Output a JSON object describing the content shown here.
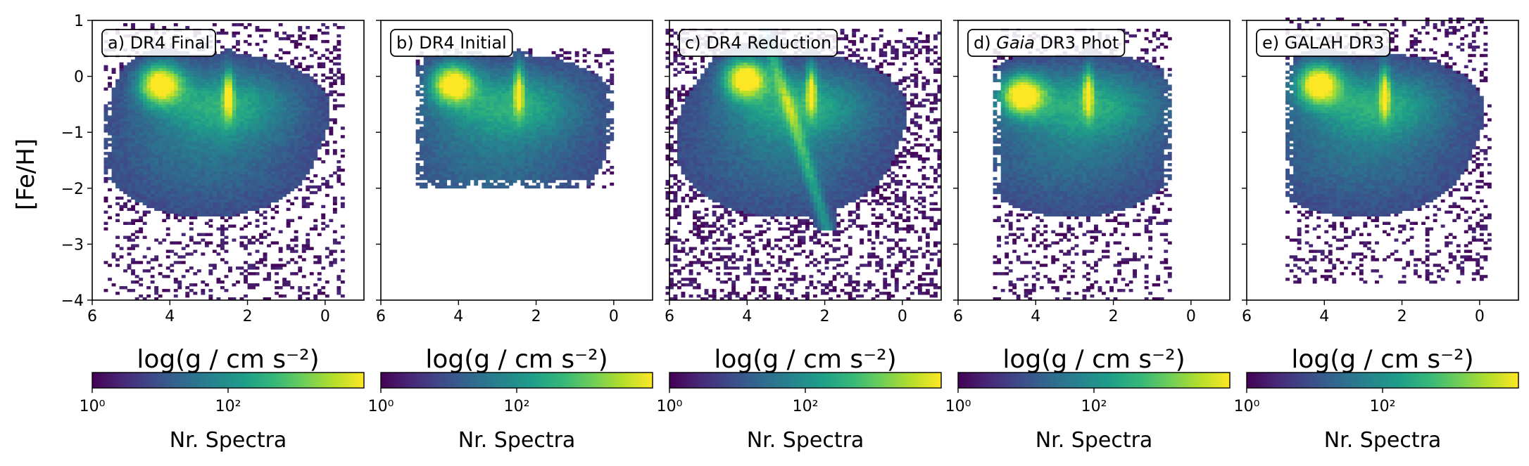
{
  "figure": {
    "ylabel": "[Fe/H]",
    "xlabel": "log(g / cm s⁻²)",
    "colorbar_label": "Nr. Spectra"
  },
  "colors": {
    "viridis": [
      "#440154",
      "#482878",
      "#3e4a89",
      "#31688e",
      "#26828e",
      "#1f9e89",
      "#35b779",
      "#6ece58",
      "#b5de2b",
      "#fde725"
    ]
  },
  "chart_data": [
    {
      "type": "heatmap",
      "panel_label_prefix": "a) ",
      "panel_label_italic": "",
      "panel_label_rest": "DR4 Final",
      "xlim": [
        6,
        -1
      ],
      "ylim": [
        -4,
        1
      ],
      "x_ticks": [
        6,
        4,
        2,
        0
      ],
      "x_tick_labels": [
        "6",
        "4",
        "2",
        "0"
      ],
      "y_ticks": [
        1,
        0,
        -1,
        -2,
        -3,
        -4
      ],
      "y_tick_labels": [
        "1",
        "0",
        "−1",
        "−2",
        "−3",
        "−4"
      ],
      "logg_range": [
        -0.5,
        5.6
      ],
      "feh_range": [
        -4.0,
        0.9
      ],
      "density_peaks": [
        {
          "logg": 4.2,
          "feh": -0.15
        },
        {
          "logg": 2.45,
          "feh": -0.35
        }
      ],
      "colorbar": {
        "scale": "log",
        "range": [
          1,
          10000
        ],
        "tick_labels": [
          "10⁰",
          "10²"
        ]
      }
    },
    {
      "type": "heatmap",
      "panel_label_prefix": "b) ",
      "panel_label_italic": "",
      "panel_label_rest": "DR4 Initial",
      "xlim": [
        6,
        -1
      ],
      "ylim": [
        -4,
        1
      ],
      "x_ticks": [
        6,
        4,
        2,
        0
      ],
      "x_tick_labels": [
        "6",
        "4",
        "2",
        "0"
      ],
      "y_ticks": [
        1,
        0,
        -1,
        -2,
        -3,
        -4
      ],
      "logg_range": [
        0.0,
        5.0
      ],
      "feh_range": [
        -2.0,
        0.5
      ],
      "density_peaks": [
        {
          "logg": 4.1,
          "feh": -0.15
        },
        {
          "logg": 2.4,
          "feh": -0.25
        }
      ],
      "colorbar": {
        "scale": "log",
        "range": [
          1,
          10000
        ],
        "tick_labels": [
          "10⁰",
          "10²"
        ]
      }
    },
    {
      "type": "heatmap",
      "panel_label_prefix": "c) ",
      "panel_label_italic": "",
      "panel_label_rest": "DR4 Reduction",
      "xlim": [
        6,
        -1
      ],
      "ylim": [
        -4,
        1
      ],
      "x_ticks": [
        6,
        4,
        2,
        0
      ],
      "x_tick_labels": [
        "6",
        "4",
        "2",
        "0"
      ],
      "y_ticks": [
        1,
        0,
        -1,
        -2,
        -3,
        -4
      ],
      "logg_range": [
        -1.0,
        6.0
      ],
      "feh_range": [
        -4.0,
        0.8
      ],
      "density_peaks": [
        {
          "logg": 4.0,
          "feh": -0.05
        },
        {
          "logg": 2.3,
          "feh": -0.25
        }
      ],
      "colorbar": {
        "scale": "log",
        "range": [
          1,
          10000
        ],
        "tick_labels": [
          "10⁰",
          "10²"
        ]
      }
    },
    {
      "type": "heatmap",
      "panel_label_prefix": "d) ",
      "panel_label_italic": "Gaia",
      "panel_label_rest": " DR3 Phot",
      "xlim": [
        6,
        -1
      ],
      "ylim": [
        -4,
        1
      ],
      "x_ticks": [
        6,
        4,
        2,
        0
      ],
      "x_tick_labels": [
        "6",
        "4",
        "2",
        "0"
      ],
      "y_ticks": [
        1,
        0,
        -1,
        -2,
        -3,
        -4
      ],
      "logg_range": [
        0.5,
        5.0
      ],
      "feh_range": [
        -4.0,
        0.8
      ],
      "density_peaks": [
        {
          "logg": 4.3,
          "feh": -0.35
        },
        {
          "logg": 2.6,
          "feh": -0.3
        }
      ],
      "colorbar": {
        "scale": "log",
        "range": [
          1,
          10000
        ],
        "tick_labels": [
          "10⁰",
          "10²"
        ]
      }
    },
    {
      "type": "heatmap",
      "panel_label_prefix": "e) ",
      "panel_label_italic": "",
      "panel_label_rest": "GALAH DR3",
      "xlim": [
        6,
        -1
      ],
      "ylim": [
        -4,
        1
      ],
      "x_ticks": [
        6,
        4,
        2,
        0
      ],
      "x_tick_labels": [
        "6",
        "4",
        "2",
        "0"
      ],
      "y_ticks": [
        1,
        0,
        -1,
        -2,
        -3,
        -4
      ],
      "logg_range": [
        -0.3,
        4.9
      ],
      "feh_range": [
        -3.7,
        1.0
      ],
      "density_peaks": [
        {
          "logg": 4.1,
          "feh": -0.15
        },
        {
          "logg": 2.4,
          "feh": -0.3
        }
      ],
      "colorbar": {
        "scale": "log",
        "range": [
          1,
          10000
        ],
        "tick_labels": [
          "10⁰",
          "10²"
        ]
      }
    }
  ]
}
